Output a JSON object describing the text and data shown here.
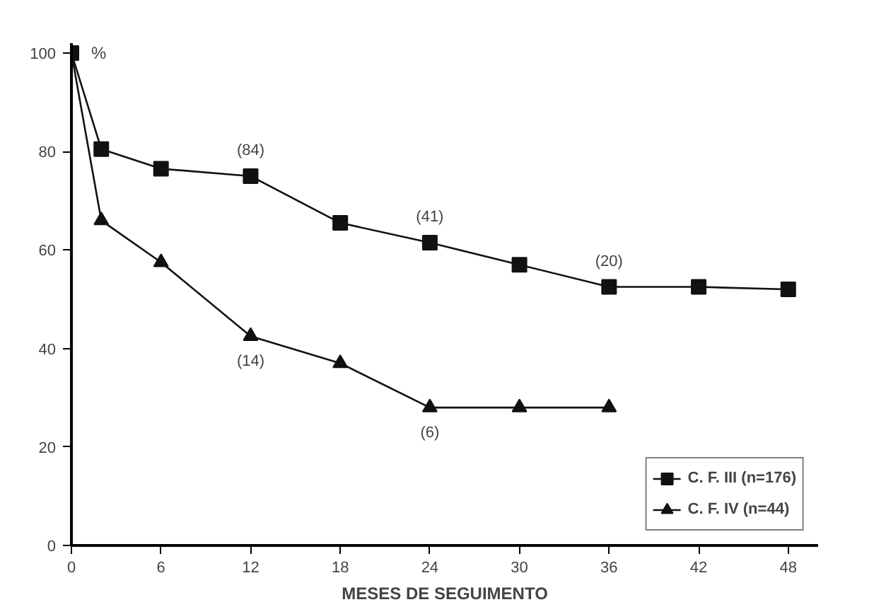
{
  "chart_data": {
    "type": "line",
    "xlabel": "MESES DE SEGUIMENTO",
    "ylabel": "%",
    "xlim": [
      0,
      50
    ],
    "ylim": [
      0,
      102
    ],
    "xticks": [
      0,
      6,
      12,
      18,
      24,
      30,
      36,
      42,
      48
    ],
    "yticks": [
      0,
      20,
      40,
      60,
      80,
      100
    ],
    "grid": false,
    "legend": "bottom right",
    "line_style": "solid",
    "series": [
      {
        "name": "C. F. III (n=176)",
        "color": "#111111",
        "marker": "square",
        "x": [
          0,
          2,
          6,
          12,
          18,
          24,
          30,
          36,
          42,
          48
        ],
        "values": [
          100,
          80.5,
          76.5,
          75,
          65.5,
          61.5,
          57,
          52.5,
          52.5,
          52
        ]
      },
      {
        "name": "C. F. IV (n=44)",
        "color": "#111111",
        "marker": "triangle",
        "x": [
          0,
          2,
          6,
          12,
          18,
          24,
          30,
          36
        ],
        "values": [
          100,
          66,
          57.5,
          42.5,
          37,
          28,
          28,
          28
        ]
      }
    ],
    "annotations": [
      {
        "text": "(84)",
        "x": 12,
        "y": 75
      },
      {
        "text": "(41)",
        "x": 24,
        "y": 61.5
      },
      {
        "text": "(20)",
        "x": 36,
        "y": 52.5
      },
      {
        "text": "(14)",
        "x": 12,
        "y": 42.5
      },
      {
        "text": "(6)",
        "x": 24,
        "y": 28
      }
    ]
  }
}
